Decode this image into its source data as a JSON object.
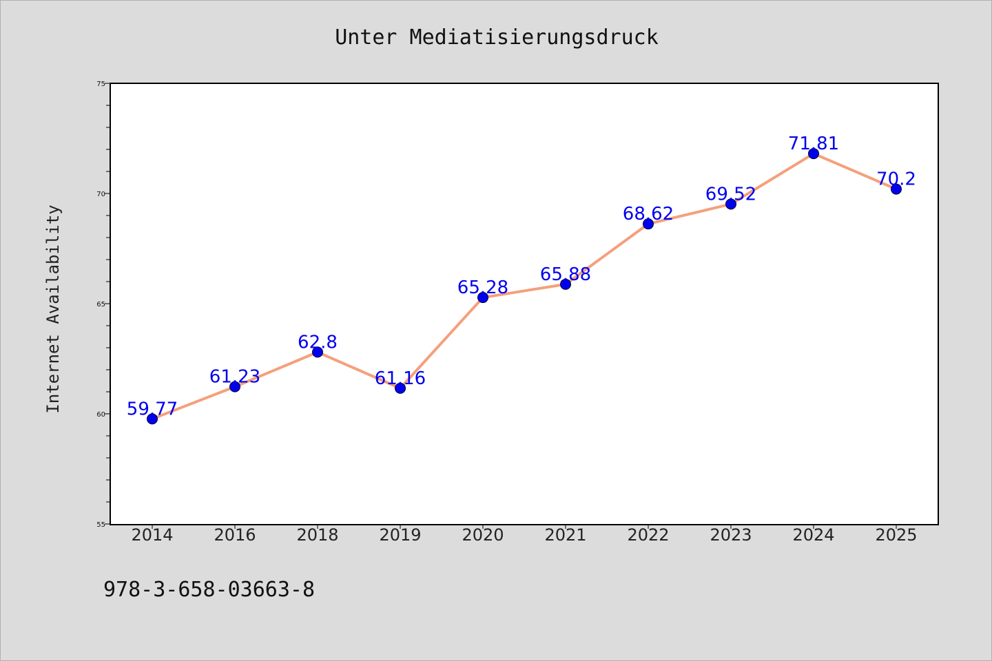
{
  "chart_data": {
    "type": "line",
    "title": "Unter Mediatisierungsdruck",
    "xlabel": "",
    "ylabel": "Internet Availability",
    "categories": [
      "2014",
      "2016",
      "2018",
      "2019",
      "2020",
      "2021",
      "2022",
      "2023",
      "2024",
      "2025"
    ],
    "series": [
      {
        "values": [
          59.77,
          61.23,
          62.8,
          61.16,
          65.28,
          65.88,
          68.62,
          69.52,
          71.81,
          70.2
        ],
        "data_labels": [
          "59.77",
          "61.23",
          "62.8",
          "61.16",
          "65.28",
          "65.88",
          "68.62",
          "69.52",
          "71.81",
          "70.2"
        ]
      }
    ],
    "ylim": [
      55,
      75
    ],
    "yticks": [
      "55",
      "60",
      "65",
      "70",
      "75"
    ],
    "yticks_values": [
      55,
      60,
      65,
      70,
      75
    ],
    "grid": false,
    "legend": "none",
    "colors": {
      "line": "#f4a07c",
      "marker": "#0000ee",
      "label": "#0000ee",
      "background": "#dcdcdc",
      "plot_background": "#ffffff"
    }
  },
  "footnote": "978-3-658-03663-8"
}
